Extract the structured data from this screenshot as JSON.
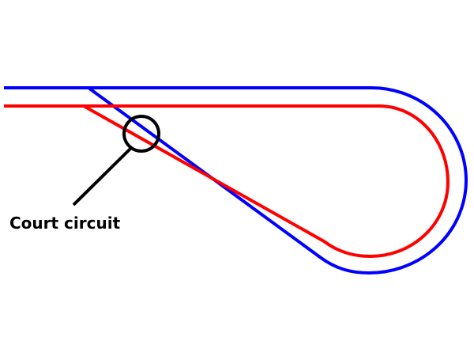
{
  "annotation": {
    "label": "Court circuit"
  },
  "colors": {
    "outer_track": "#0000ff",
    "inner_track": "#ff0000",
    "annotation": "#000000",
    "background": "#ffffff"
  }
}
